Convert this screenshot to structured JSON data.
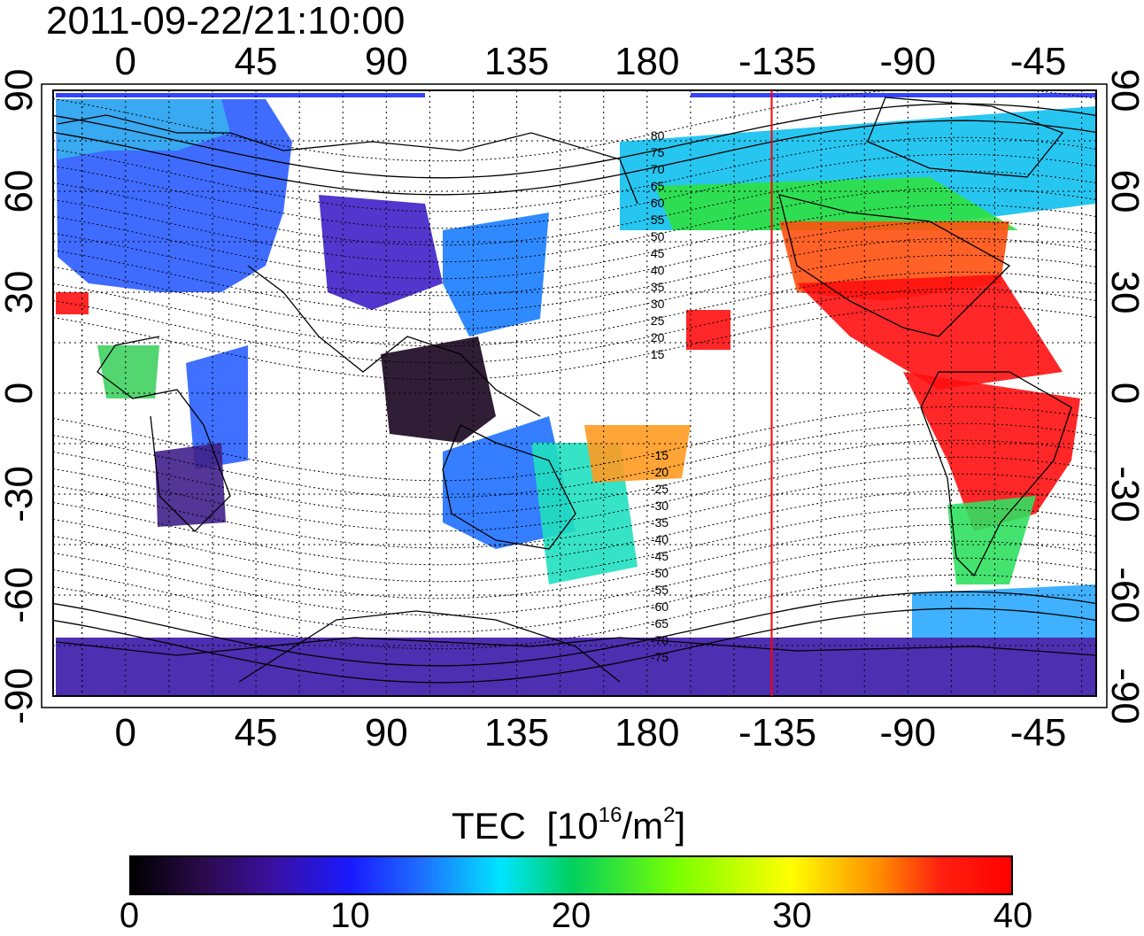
{
  "timestamp": "2011-09-22/21:10:00",
  "lon_ticks_top": [
    "0",
    "45",
    "90",
    "135",
    "180",
    "-135",
    "-90",
    "-45"
  ],
  "lon_ticks_bottom": [
    "0",
    "45",
    "90",
    "135",
    "180",
    "-135",
    "-90",
    "-45"
  ],
  "lat_ticks_left": [
    "90",
    "60",
    "30",
    "0",
    "-30",
    "-60",
    "-90"
  ],
  "lat_ticks_right": [
    "90",
    "60",
    "30",
    "0",
    "-30",
    "-60",
    "-90"
  ],
  "mag_lat_labels": [
    "80",
    "75",
    "70",
    "65",
    "60",
    "55",
    "50",
    "45",
    "40",
    "35",
    "30",
    "25",
    "20",
    "15",
    "-15",
    "-20",
    "-25",
    "-30",
    "-35",
    "-40",
    "-45",
    "-50",
    "-55",
    "-60",
    "-65",
    "-70",
    "-75"
  ],
  "colorbar": {
    "title": "TEC",
    "unit_prefix": "[10",
    "unit_exp1": "16",
    "unit_mid": "/m",
    "unit_exp2": "2",
    "unit_suffix": "]",
    "ticks": [
      "0",
      "10",
      "20",
      "30",
      "40"
    ]
  },
  "terminator_color": "#ff0000",
  "terminator_lon": -137
}
